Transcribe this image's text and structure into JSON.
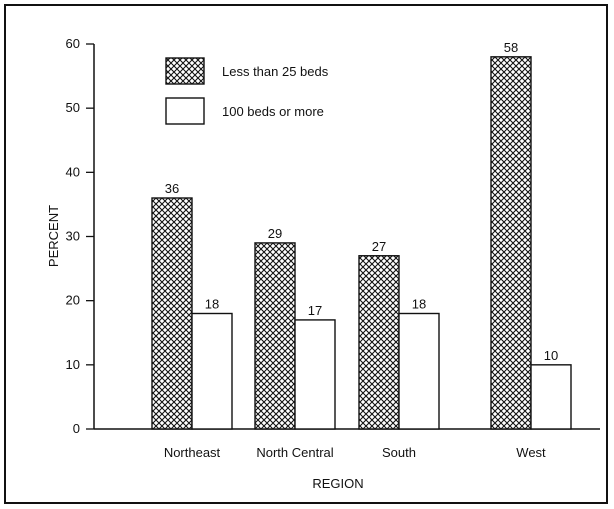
{
  "chart_data": {
    "type": "bar",
    "title": "",
    "xlabel": "REGION",
    "ylabel": "PERCENT",
    "categories": [
      "Northeast",
      "North Central",
      "South",
      "West"
    ],
    "series": [
      {
        "name": "Less than 25 beds",
        "values": [
          36,
          29,
          27,
          58
        ],
        "fill": "crosshatch"
      },
      {
        "name": "100 beds or more",
        "values": [
          18,
          17,
          18,
          10
        ],
        "fill": "white"
      }
    ],
    "ylim": [
      0,
      60
    ],
    "yticks": [
      0,
      10,
      20,
      30,
      40,
      50,
      60
    ],
    "grid": false,
    "legend_position": "top-left inside plot"
  },
  "colors": {
    "ink": "#111111",
    "background": "#ffffff"
  }
}
